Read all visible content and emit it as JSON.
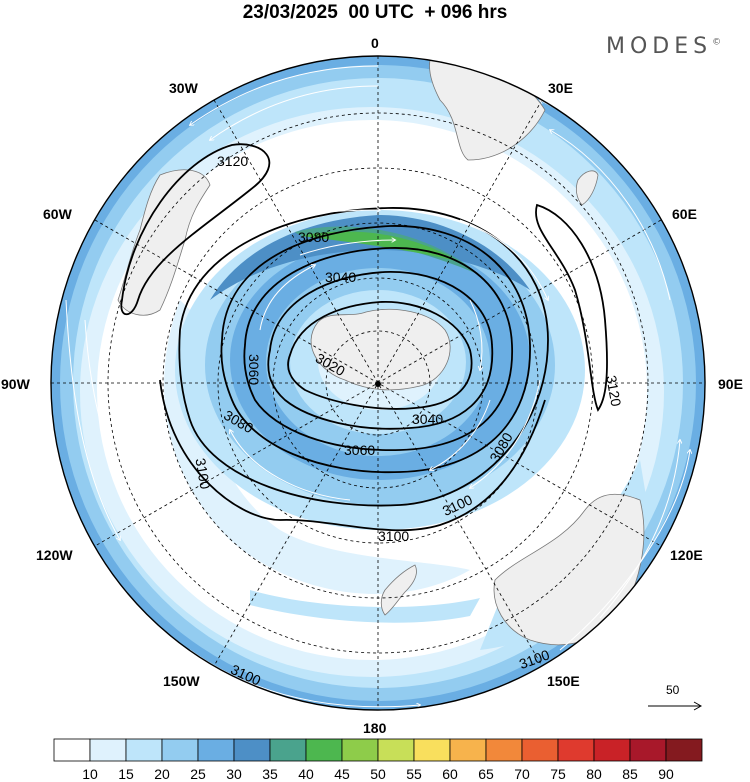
{
  "title": "23/03/2025  00 UTC  + 096 hrs",
  "brand": "MODES",
  "brand_mark": "©",
  "longitude_labels": {
    "l0": "0",
    "l30e": "30E",
    "l60e": "60E",
    "l90e": "90E",
    "l120e": "120E",
    "l150e": "150E",
    "l180": "180",
    "l150w": "150W",
    "l120w": "120W",
    "l90w": "90W",
    "l60w": "60W",
    "l30w": "30W"
  },
  "contour_labels": [
    "3120",
    "3080",
    "3040",
    "3060",
    "3020",
    "3040",
    "3060",
    "3080",
    "3100",
    "3100",
    "3100",
    "3120",
    "3080",
    "3100",
    "3100"
  ],
  "reference_vector": "50",
  "colorbar": {
    "labels": [
      "10",
      "15",
      "20",
      "25",
      "30",
      "35",
      "40",
      "45",
      "50",
      "55",
      "60",
      "65",
      "70",
      "75",
      "80",
      "85",
      "90"
    ],
    "colors": [
      "#ffffff",
      "#dff2fd",
      "#bee5fa",
      "#93ccf0",
      "#6aaee3",
      "#4d8fc6",
      "#4aa38d",
      "#4db74f",
      "#8ecc4a",
      "#c8df58",
      "#f9df5d",
      "#f7b34c",
      "#f2883a",
      "#ea5f31",
      "#df3a2e",
      "#c92227",
      "#a8182a",
      "#841a1f"
    ]
  },
  "colors": {
    "land": "#efefef",
    "coast": "#777777",
    "contour": "#000000",
    "grid": "#000000",
    "wind_arrows": "#ffffff"
  }
}
